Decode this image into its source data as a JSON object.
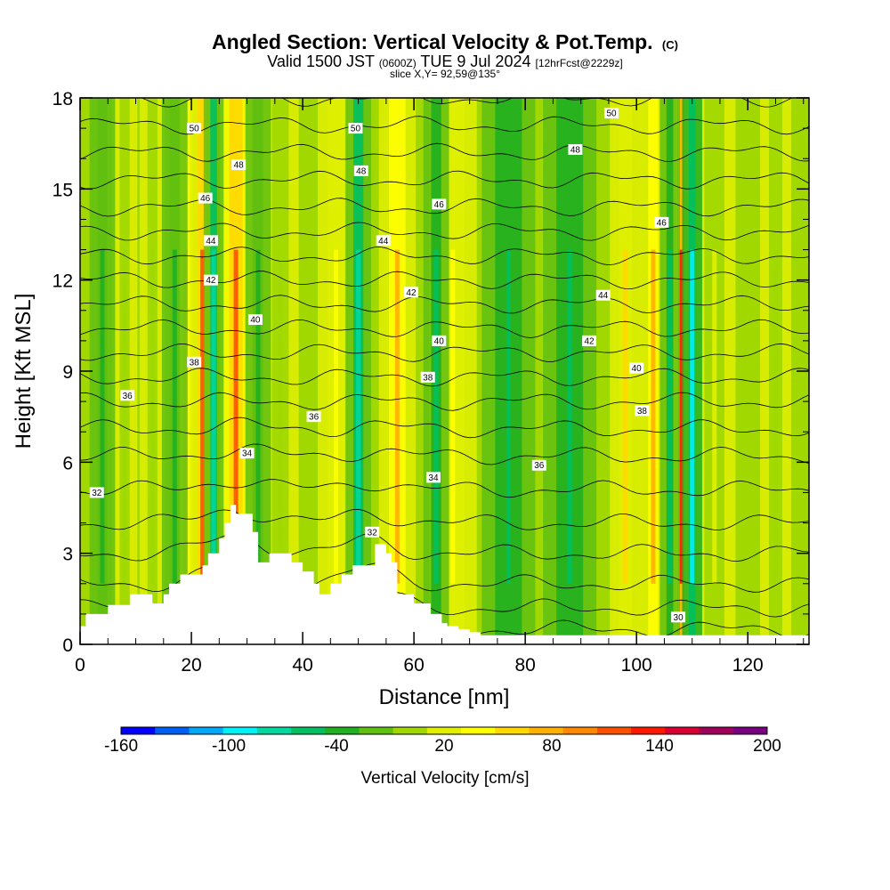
{
  "header": {
    "title": "Angled Section: Vertical Velocity & Pot.Temp.",
    "title_mark": "(C)",
    "subtitle_main": "Valid 1500 JST",
    "subtitle_utc": "(0600Z)",
    "subtitle_date": "TUE 9 Jul 2024",
    "subtitle_fcst": "[12hrFcst@2229z]",
    "slice": "slice X,Y= 92,59@135°"
  },
  "chart_data": {
    "type": "heatmap",
    "title": "Angled Section: Vertical Velocity & Pot.Temp.",
    "xlabel": "Distance [nm]",
    "ylabel": "Height [Kft MSL]",
    "xlim": [
      0,
      131
    ],
    "ylim": [
      0,
      18
    ],
    "x_ticks": [
      0,
      20,
      40,
      60,
      80,
      100,
      120
    ],
    "y_ticks": [
      0,
      3,
      6,
      9,
      12,
      15,
      18
    ],
    "grid": false,
    "colorbar": {
      "title": "Vertical Velocity [cm/s]",
      "range": [
        -160,
        200
      ],
      "tick_labels": [
        "-160",
        "-100",
        "-40",
        "20",
        "80",
        "140",
        "200"
      ],
      "tick_values": [
        -160,
        -100,
        -40,
        20,
        80,
        140,
        200
      ],
      "colors": [
        "#0000ff",
        "#005ff5",
        "#00a8f8",
        "#00f0f8",
        "#00d8a0",
        "#00c060",
        "#20b020",
        "#60c010",
        "#a0d800",
        "#e0f000",
        "#ffff00",
        "#ffd800",
        "#ffb000",
        "#ff8800",
        "#ff5000",
        "#ff1800",
        "#d80030",
        "#a0005a",
        "#780080"
      ]
    },
    "updraft_bands": [
      {
        "x": 8,
        "w": 3,
        "value": 10
      },
      {
        "x": 13,
        "w": 3,
        "value": 10
      },
      {
        "x": 19,
        "w": 4,
        "value": 60
      },
      {
        "x": 22,
        "w": 3,
        "value": 110
      },
      {
        "x": 28,
        "w": 4,
        "value": 120
      },
      {
        "x": 36,
        "w": 5,
        "value": 10
      },
      {
        "x": 46,
        "w": 5,
        "value": 40
      },
      {
        "x": 57,
        "w": 5,
        "value": 70
      },
      {
        "x": 67,
        "w": 7,
        "value": 30
      },
      {
        "x": 98,
        "w": 4,
        "value": 50
      },
      {
        "x": 103,
        "w": 3,
        "value": 70
      },
      {
        "x": 108,
        "w": 2,
        "value": 130
      },
      {
        "x": 114,
        "w": 6,
        "value": 15
      },
      {
        "x": 125,
        "w": 4,
        "value": 10
      }
    ],
    "downdraft_bands": [
      {
        "x": 4,
        "w": 3,
        "value": -40
      },
      {
        "x": 17,
        "w": 3,
        "value": -40
      },
      {
        "x": 24,
        "w": 2,
        "value": -80
      },
      {
        "x": 32,
        "w": 3,
        "value": -40
      },
      {
        "x": 50,
        "w": 3,
        "value": -80
      },
      {
        "x": 64,
        "w": 3,
        "value": -60
      },
      {
        "x": 77,
        "w": 8,
        "value": -50
      },
      {
        "x": 88,
        "w": 8,
        "value": -60
      },
      {
        "x": 106,
        "w": 2,
        "value": -60
      },
      {
        "x": 110,
        "w": 2,
        "value": -100
      }
    ],
    "terrain": {
      "x": [
        0,
        1,
        1,
        5,
        5,
        9,
        9,
        13,
        13,
        15,
        15,
        16,
        16,
        18,
        18,
        22,
        22,
        23,
        23,
        25,
        25,
        26,
        26,
        27,
        27,
        28,
        28,
        31,
        31,
        32,
        32,
        34,
        34,
        38,
        38,
        40,
        40,
        42,
        42,
        43,
        43,
        45,
        45,
        47,
        47,
        49,
        49,
        53,
        53,
        55,
        55,
        56,
        56,
        57,
        57,
        60,
        60,
        63,
        63,
        65,
        65,
        66,
        66,
        68,
        68,
        70,
        70,
        72,
        72,
        131
      ],
      "kft": [
        0.6,
        0.6,
        1.0,
        1.0,
        1.3,
        1.3,
        1.65,
        1.65,
        1.35,
        1.35,
        1.65,
        1.65,
        2.0,
        2.0,
        2.3,
        2.3,
        2.6,
        2.6,
        3.0,
        3.0,
        3.5,
        3.5,
        4.0,
        4.0,
        4.6,
        4.6,
        4.3,
        4.3,
        3.7,
        3.7,
        2.7,
        2.7,
        3.0,
        3.0,
        2.7,
        2.7,
        2.4,
        2.4,
        2.0,
        2.0,
        1.65,
        1.65,
        2.0,
        2.0,
        2.3,
        2.3,
        2.6,
        2.6,
        3.3,
        3.3,
        3.0,
        3.0,
        2.7,
        2.7,
        1.65,
        1.65,
        1.35,
        1.35,
        1.0,
        1.0,
        0.7,
        0.7,
        0.6,
        0.6,
        0.5,
        0.5,
        0.4,
        0.4,
        0.3,
        0.3
      ]
    },
    "isentropes": [
      {
        "theta": 30,
        "level": 0.5
      },
      {
        "theta": 31,
        "level": 1.2
      },
      {
        "theta": 32,
        "level": 2.0
      },
      {
        "theta": 33,
        "level": 3.0
      },
      {
        "theta": 34,
        "level": 4.0
      },
      {
        "theta": 35,
        "level": 5.1
      },
      {
        "theta": 36,
        "level": 6.2
      },
      {
        "theta": 37,
        "level": 7.1
      },
      {
        "theta": 38,
        "level": 8.0
      },
      {
        "theta": 39,
        "level": 8.8
      },
      {
        "theta": 40,
        "level": 9.6
      },
      {
        "theta": 41,
        "level": 10.4
      },
      {
        "theta": 42,
        "level": 11.2
      },
      {
        "theta": 43,
        "level": 12.0
      },
      {
        "theta": 44,
        "level": 12.8
      },
      {
        "theta": 45,
        "level": 13.6
      },
      {
        "theta": 46,
        "level": 14.4
      },
      {
        "theta": 47,
        "level": 15.3
      },
      {
        "theta": 48,
        "level": 16.2
      },
      {
        "theta": 49,
        "level": 17.1
      },
      {
        "theta": 50,
        "level": 18.0
      }
    ],
    "contour_labels": [
      {
        "text": "50",
        "x": 20.5,
        "y": 17.0
      },
      {
        "text": "48",
        "x": 28.5,
        "y": 15.8
      },
      {
        "text": "46",
        "x": 22.5,
        "y": 14.7
      },
      {
        "text": "44",
        "x": 23.5,
        "y": 13.3
      },
      {
        "text": "42",
        "x": 23.5,
        "y": 12.0
      },
      {
        "text": "40",
        "x": 31.5,
        "y": 10.7
      },
      {
        "text": "38",
        "x": 20.5,
        "y": 9.3
      },
      {
        "text": "36",
        "x": 8.5,
        "y": 8.2
      },
      {
        "text": "34",
        "x": 30.0,
        "y": 6.3
      },
      {
        "text": "32",
        "x": 3.0,
        "y": 5.0
      },
      {
        "text": "50",
        "x": 49.5,
        "y": 17.0
      },
      {
        "text": "48",
        "x": 50.5,
        "y": 15.6
      },
      {
        "text": "46",
        "x": 64.5,
        "y": 14.5
      },
      {
        "text": "44",
        "x": 54.5,
        "y": 13.3
      },
      {
        "text": "42",
        "x": 59.5,
        "y": 11.6
      },
      {
        "text": "40",
        "x": 64.5,
        "y": 10.0
      },
      {
        "text": "38",
        "x": 62.5,
        "y": 8.8
      },
      {
        "text": "36",
        "x": 42.0,
        "y": 7.5
      },
      {
        "text": "34",
        "x": 63.5,
        "y": 5.5
      },
      {
        "text": "32",
        "x": 52.5,
        "y": 3.7
      },
      {
        "text": "50",
        "x": 95.5,
        "y": 17.5
      },
      {
        "text": "48",
        "x": 89.0,
        "y": 16.3
      },
      {
        "text": "46",
        "x": 104.5,
        "y": 13.9
      },
      {
        "text": "44",
        "x": 94.0,
        "y": 11.5
      },
      {
        "text": "42",
        "x": 91.5,
        "y": 10.0
      },
      {
        "text": "40",
        "x": 100.0,
        "y": 9.1
      },
      {
        "text": "38",
        "x": 101.0,
        "y": 7.7
      },
      {
        "text": "36",
        "x": 82.5,
        "y": 5.9
      },
      {
        "text": "30",
        "x": 107.5,
        "y": 0.9
      }
    ]
  }
}
